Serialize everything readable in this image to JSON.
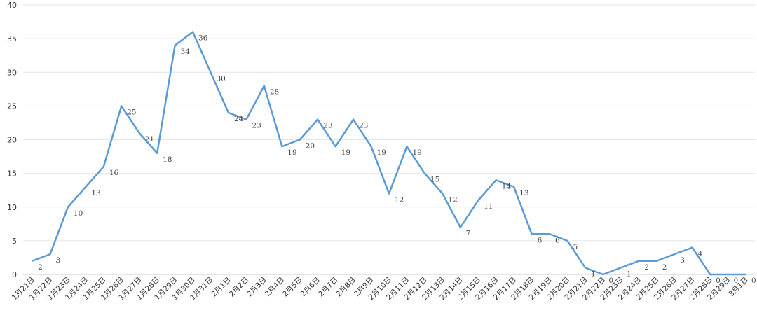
{
  "chart_data": {
    "type": "line",
    "title": "",
    "xlabel": "",
    "ylabel": "",
    "ylim": [
      0,
      40
    ],
    "yticks": [
      0,
      5,
      10,
      15,
      20,
      25,
      30,
      35,
      40
    ],
    "grid": true,
    "line_color": "#5b9bd5",
    "categories": [
      "1月21日",
      "1月22日",
      "1月23日",
      "1月24日",
      "1月25日",
      "1月26日",
      "1月27日",
      "1月28日",
      "1月29日",
      "1月30日",
      "1月31日",
      "2月1日",
      "2月2日",
      "2月3日",
      "2月4日",
      "2月5日",
      "2月6日",
      "2月7日",
      "2月8日",
      "2月9日",
      "2月10日",
      "2月11日",
      "2月12日",
      "2月13日",
      "2月14日",
      "2月15日",
      "2月16日",
      "2月17日",
      "2月18日",
      "2月19日",
      "2月20日",
      "2月21日",
      "2月22日",
      "2月23日",
      "2月24日",
      "2月25日",
      "2月26日",
      "2月27日",
      "2月28日",
      "2月29日",
      "3月1日"
    ],
    "series": [
      {
        "values": [
          2,
          3,
          10,
          13,
          16,
          25,
          21,
          18,
          34,
          36,
          30,
          24,
          23,
          28,
          19,
          20,
          23,
          19,
          23,
          19,
          12,
          19,
          15,
          12,
          7,
          11,
          14,
          13,
          6,
          6,
          5,
          1,
          0,
          1,
          2,
          2,
          3,
          4,
          0,
          0,
          0
        ]
      }
    ]
  }
}
